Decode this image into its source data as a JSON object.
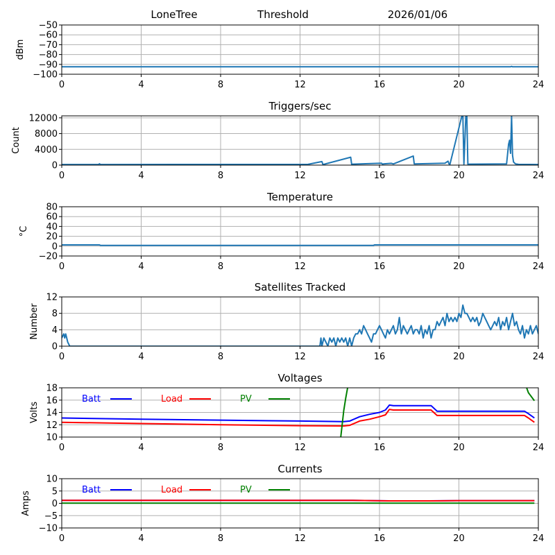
{
  "header": {
    "station": "LoneTree",
    "mode": "Threshold",
    "date": "2026/01/06"
  },
  "chart_data": [
    {
      "id": "signal",
      "type": "line",
      "title": "",
      "xlabel": "",
      "ylabel": "dBm",
      "xlim": [
        0,
        24
      ],
      "ylim": [
        -100,
        -50
      ],
      "xticks": [
        0,
        4,
        8,
        12,
        16,
        20,
        24
      ],
      "yticks": [
        -100,
        -90,
        -80,
        -70,
        -60,
        -50
      ],
      "ytick_labels": [
        "−100",
        "−90",
        "−80",
        "−70",
        "−60",
        "−50"
      ],
      "grid": true,
      "series": [
        {
          "name": "dBm",
          "color": "#1f77b4",
          "x": [
            0,
            22.6,
            22.65,
            22.7,
            24
          ],
          "y": [
            -92.5,
            -92.5,
            -92,
            -92.5,
            -92.5
          ]
        }
      ]
    },
    {
      "id": "triggers",
      "type": "line",
      "title": "Triggers/sec",
      "xlabel": "",
      "ylabel": "Count",
      "xlim": [
        0,
        24
      ],
      "ylim": [
        0,
        12500
      ],
      "xticks": [
        0,
        4,
        8,
        12,
        16,
        20,
        24
      ],
      "yticks": [
        0,
        4000,
        8000,
        12000
      ],
      "ytick_labels": [
        "0",
        "4000",
        "8000",
        "12000"
      ],
      "grid": true,
      "series": [
        {
          "name": "Count",
          "color": "#1f77b4",
          "x": [
            0,
            1.85,
            1.9,
            1.95,
            12.4,
            13.1,
            13.15,
            13.2,
            14.55,
            14.6,
            14.65,
            16.1,
            16.15,
            16.2,
            16.6,
            16.7,
            17.7,
            17.75,
            17.8,
            19.3,
            19.45,
            19.5,
            19.55,
            20.15,
            20.2,
            20.25,
            20.35,
            20.4,
            20.45,
            22.4,
            22.5,
            22.55,
            22.6,
            22.65,
            22.7,
            22.75,
            22.85,
            23.0,
            24
          ],
          "y": [
            150,
            150,
            350,
            150,
            200,
            900,
            200,
            200,
            2000,
            200,
            250,
            500,
            250,
            300,
            450,
            300,
            2300,
            300,
            300,
            500,
            1000,
            300,
            250,
            12500,
            12500,
            250,
            12500,
            12500,
            250,
            300,
            5300,
            6300,
            3000,
            12500,
            2500,
            800,
            300,
            200,
            150
          ]
        }
      ]
    },
    {
      "id": "temperature",
      "type": "line",
      "title": "Temperature",
      "xlabel": "",
      "ylabel": "°C",
      "xlim": [
        0,
        24
      ],
      "ylim": [
        -20,
        80
      ],
      "xticks": [
        0,
        4,
        8,
        12,
        16,
        20,
        24
      ],
      "yticks": [
        -20,
        0,
        20,
        40,
        60,
        80
      ],
      "ytick_labels": [
        "−20",
        "0",
        "20",
        "40",
        "60",
        "80"
      ],
      "grid": true,
      "series": [
        {
          "name": "Temperature",
          "color": "#1f77b4",
          "x": [
            0,
            1.9,
            1.95,
            15.7,
            15.75,
            24
          ],
          "y": [
            2.5,
            2.5,
            1.5,
            1.5,
            2.5,
            2.5
          ]
        }
      ]
    },
    {
      "id": "satellites",
      "type": "line",
      "title": "Satellites Tracked",
      "xlabel": "",
      "ylabel": "Number",
      "xlim": [
        0,
        24
      ],
      "ylim": [
        0,
        12
      ],
      "xticks": [
        0,
        4,
        8,
        12,
        16,
        20,
        24
      ],
      "yticks": [
        0,
        4,
        8,
        12
      ],
      "ytick_labels": [
        "0",
        "4",
        "8",
        "12"
      ],
      "grid": true,
      "series": [
        {
          "name": "Satellites",
          "color": "#1f77b4",
          "x": [
            0,
            0.1,
            0.15,
            0.2,
            0.25,
            0.3,
            0.4,
            13.0,
            13.05,
            13.1,
            13.2,
            13.3,
            13.4,
            13.5,
            13.6,
            13.7,
            13.8,
            13.9,
            14.0,
            14.1,
            14.2,
            14.3,
            14.4,
            14.5,
            14.6,
            14.7,
            14.8,
            14.9,
            15.0,
            15.1,
            15.2,
            15.3,
            15.4,
            15.5,
            15.6,
            15.7,
            15.8,
            15.9,
            16.0,
            16.1,
            16.2,
            16.3,
            16.4,
            16.5,
            16.6,
            16.7,
            16.8,
            16.9,
            17.0,
            17.1,
            17.2,
            17.3,
            17.4,
            17.5,
            17.6,
            17.7,
            17.8,
            17.9,
            18.0,
            18.1,
            18.2,
            18.3,
            18.4,
            18.5,
            18.6,
            18.7,
            18.8,
            18.9,
            19.0,
            19.1,
            19.2,
            19.3,
            19.4,
            19.5,
            19.6,
            19.7,
            19.8,
            19.9,
            20.0,
            20.1,
            20.2,
            20.3,
            20.4,
            20.5,
            20.6,
            20.7,
            20.8,
            20.9,
            21.0,
            21.1,
            21.2,
            21.3,
            21.4,
            21.5,
            21.6,
            21.7,
            21.8,
            21.9,
            22.0,
            22.1,
            22.2,
            22.3,
            22.4,
            22.5,
            22.6,
            22.7,
            22.8,
            22.9,
            23.0,
            23.1,
            23.2,
            23.3,
            23.4,
            23.5,
            23.6,
            23.7,
            23.8,
            23.9,
            24.0
          ],
          "y": [
            2,
            3,
            2,
            3,
            2,
            1,
            0,
            0,
            2,
            0,
            2,
            1,
            0,
            2,
            1,
            2,
            0,
            2,
            1,
            2,
            1,
            2,
            0,
            2,
            0,
            2,
            3,
            3,
            4,
            3,
            5,
            4,
            3,
            2,
            1,
            3,
            3,
            4,
            5,
            4,
            3,
            2,
            4,
            3,
            4,
            5,
            3,
            4,
            7,
            3,
            5,
            4,
            3,
            4,
            5,
            3,
            4,
            4,
            3,
            5,
            2,
            4,
            3,
            5,
            2,
            4,
            4,
            6,
            5,
            6,
            7,
            5,
            8,
            6,
            7,
            6,
            7,
            6,
            8,
            7,
            10,
            8,
            8,
            7,
            6,
            7,
            6,
            7,
            5,
            6,
            8,
            7,
            6,
            5,
            4,
            5,
            6,
            5,
            7,
            4,
            6,
            5,
            7,
            4,
            6,
            8,
            5,
            6,
            4,
            3,
            5,
            2,
            4,
            3,
            5,
            3,
            4,
            5,
            3
          ]
        }
      ]
    },
    {
      "id": "voltages",
      "type": "line",
      "title": "Voltages",
      "xlabel": "",
      "ylabel": "Volts",
      "xlim": [
        0,
        24
      ],
      "ylim": [
        10,
        18
      ],
      "xticks": [
        0,
        4,
        8,
        12,
        16,
        20,
        24
      ],
      "yticks": [
        10,
        12,
        14,
        16,
        18
      ],
      "ytick_labels": [
        "10",
        "12",
        "14",
        "16",
        "18"
      ],
      "grid": true,
      "legend": {
        "placement": "top-left",
        "entries": [
          "Batt",
          "Load",
          "PV"
        ]
      },
      "series": [
        {
          "name": "Batt",
          "color": "#0000ff",
          "x": [
            0,
            4,
            8,
            12,
            14.2,
            14.5,
            15.0,
            15.5,
            16.0,
            16.3,
            16.5,
            16.7,
            18.6,
            18.9,
            23.3,
            23.5,
            23.8
          ],
          "y": [
            13.1,
            12.9,
            12.75,
            12.6,
            12.5,
            12.6,
            13.3,
            13.7,
            14.0,
            14.4,
            15.2,
            15.1,
            15.1,
            14.2,
            14.2,
            13.8,
            13.1
          ]
        },
        {
          "name": "Load",
          "color": "#ff0000",
          "x": [
            0,
            4,
            8,
            12,
            14.2,
            14.5,
            15.0,
            15.5,
            16.0,
            16.3,
            16.5,
            16.7,
            18.6,
            18.9,
            23.3,
            23.5,
            23.8
          ],
          "y": [
            12.4,
            12.2,
            12.0,
            11.85,
            11.8,
            11.9,
            12.6,
            12.9,
            13.3,
            13.6,
            14.5,
            14.4,
            14.4,
            13.5,
            13.5,
            13.1,
            12.4
          ]
        },
        {
          "name": "PV",
          "color": "#008000",
          "segments": [
            {
              "x": [
                14.05,
                14.2,
                14.3,
                14.4
              ],
              "y": [
                10,
                14.3,
                16.3,
                18.1
              ]
            },
            {
              "x": [
                23.4,
                23.5,
                23.8
              ],
              "y": [
                18.1,
                17.2,
                15.9
              ]
            }
          ]
        }
      ]
    },
    {
      "id": "currents",
      "type": "line",
      "title": "Currents",
      "xlabel": "",
      "ylabel": "Amps",
      "xlim": [
        0,
        24
      ],
      "ylim": [
        -10,
        10
      ],
      "xticks": [
        0,
        4,
        8,
        12,
        16,
        20,
        24
      ],
      "yticks": [
        -10,
        -5,
        0,
        5,
        10
      ],
      "ytick_labels": [
        "−10",
        "−5",
        "0",
        "5",
        "10"
      ],
      "grid": true,
      "legend": {
        "placement": "top-left",
        "entries": [
          "Batt",
          "Load",
          "PV"
        ]
      },
      "series": [
        {
          "name": "Batt",
          "color": "#0000ff",
          "x": [
            0,
            14.5,
            16.5,
            18.5,
            20,
            23.8
          ],
          "y": [
            1.2,
            1.2,
            1.0,
            1.0,
            1.1,
            1.1
          ]
        },
        {
          "name": "Load",
          "color": "#ff0000",
          "x": [
            0,
            14.5,
            16.5,
            18.5,
            20,
            23.8
          ],
          "y": [
            1.2,
            1.2,
            1.0,
            1.0,
            1.1,
            1.1
          ]
        },
        {
          "name": "PV",
          "color": "#008000",
          "x": [
            0,
            23.8
          ],
          "y": [
            0.05,
            0.05
          ]
        }
      ]
    }
  ]
}
